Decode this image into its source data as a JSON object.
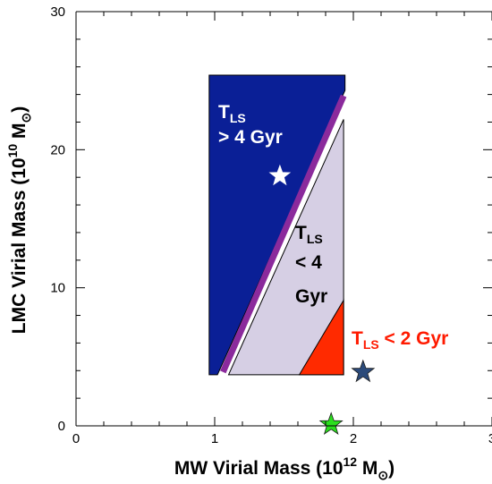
{
  "chart_data": {
    "type": "scatter",
    "title": "",
    "xlabel": {
      "prefix": "MW Virial Mass (10",
      "exp": "12",
      "mid": " M",
      "sub": "⊙",
      "suffix": ")"
    },
    "ylabel": {
      "prefix": "LMC Virial Mass (10",
      "exp": "10",
      "mid": " M",
      "sub": "⊙",
      "suffix": ")"
    },
    "xlim": [
      0,
      3
    ],
    "ylim": [
      0,
      30
    ],
    "x_ticks": [
      0,
      1,
      2,
      3
    ],
    "x_tick_labels": [
      "0",
      "1",
      "2",
      "3"
    ],
    "y_ticks": [
      0,
      10,
      20,
      30
    ],
    "y_tick_labels": [
      "0",
      "10",
      "20",
      "30"
    ],
    "grid": false,
    "regions": [
      {
        "id": "tls-gt-4",
        "label_line1": "T",
        "label_sub": "LS",
        "label_line2": "> 4 Gyr",
        "color": "#0a1f96",
        "polygon": [
          [
            0.96,
            3.7
          ],
          [
            0.96,
            25.4
          ],
          [
            1.94,
            25.4
          ],
          [
            1.94,
            24.3
          ],
          [
            1.02,
            3.7
          ]
        ]
      },
      {
        "id": "tls-lt-4",
        "label_line1": "T",
        "label_sub": "LS",
        "label_line2": "< 4",
        "label_line3": "Gyr",
        "color": "#d6cfe4",
        "polygon": [
          [
            1.1,
            3.7
          ],
          [
            1.93,
            22.2
          ],
          [
            1.93,
            3.7
          ]
        ]
      },
      {
        "id": "tls-lt-2",
        "label": "T",
        "label_sub": "LS",
        "label_suffix": " < 2 Gyr",
        "color": "#ff2a00",
        "polygon": [
          [
            1.61,
            3.7
          ],
          [
            1.93,
            9.1
          ],
          [
            1.93,
            3.7
          ]
        ]
      }
    ],
    "boundary_line": {
      "color": "#8b2a9c",
      "points": [
        [
          1.06,
          3.9
        ],
        [
          1.93,
          23.9
        ]
      ]
    },
    "points": [
      {
        "x": 1.47,
        "y": 18.1,
        "color": "#ffffff"
      },
      {
        "x": 2.07,
        "y": 3.9,
        "color": "#2b4a7a"
      },
      {
        "x": 1.84,
        "y": 0.1,
        "color": "#2bde1e"
      }
    ]
  }
}
